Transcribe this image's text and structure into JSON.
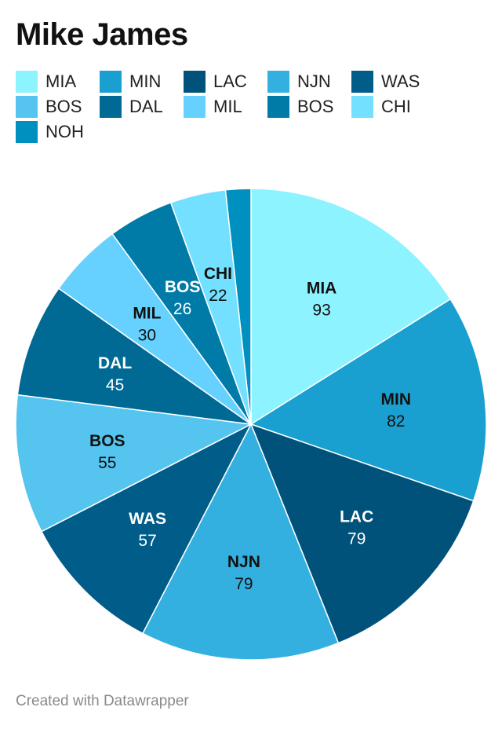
{
  "title": "Mike James",
  "footer": "Created with Datawrapper",
  "chart_data": {
    "type": "pie",
    "categories": [
      "MIA",
      "MIN",
      "LAC",
      "NJN",
      "WAS",
      "BOS",
      "DAL",
      "MIL",
      "BOS",
      "CHI",
      "NOH"
    ],
    "values": [
      93,
      82,
      79,
      79,
      57,
      55,
      45,
      30,
      26,
      22,
      10
    ],
    "colors": [
      "#8cf3ff",
      "#1aa0d0",
      "#00527a",
      "#33b0e0",
      "#005c88",
      "#55c5f0",
      "#006a94",
      "#66d1ff",
      "#007aa6",
      "#73e0ff",
      "#0090c0"
    ],
    "value_labels": [
      "93",
      "82",
      "79",
      "79",
      "57",
      "55",
      "45",
      "30",
      "26",
      "22",
      ""
    ],
    "label_colors": [
      "#111111",
      "#111111",
      "#ffffff",
      "#111111",
      "#ffffff",
      "#111111",
      "#ffffff",
      "#111111",
      "#ffffff",
      "#111111",
      "#ffffff"
    ],
    "legend": {
      "items": [
        "MIA",
        "MIN",
        "LAC",
        "NJN",
        "WAS",
        "BOS",
        "DAL",
        "MIL",
        "BOS",
        "CHI",
        "NOH"
      ],
      "placement": "top"
    }
  }
}
